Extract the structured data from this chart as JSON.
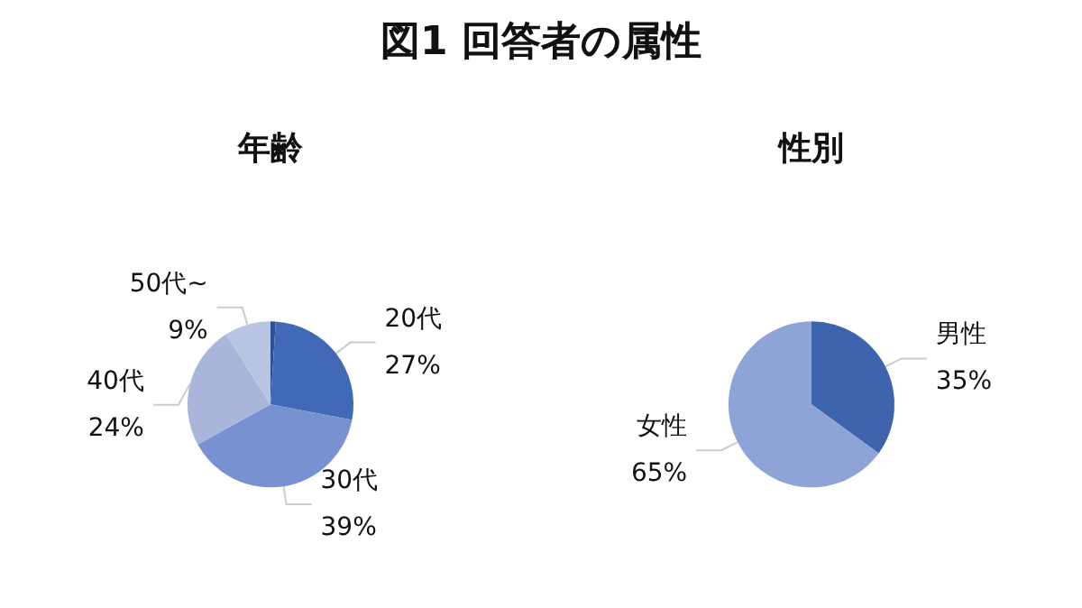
{
  "chart_data": [
    {
      "type": "pie",
      "title": "年齢",
      "annotations": [
        "図1 回答者の属性"
      ],
      "categories": [
        null,
        "20代",
        "30代",
        "40代",
        "50代~"
      ],
      "values": [
        1,
        27,
        39,
        24,
        9
      ],
      "colors": [
        "#2e4f94",
        "#4169b8",
        "#7891d0",
        "#a9b6dc",
        "#b9c4e3"
      ],
      "value_labels": [
        null,
        "27%",
        "39%",
        "24%",
        "9%"
      ],
      "legend": false
    },
    {
      "type": "pie",
      "title": "性別",
      "categories": [
        "男性",
        "女性"
      ],
      "values": [
        35,
        65
      ],
      "colors": [
        "#3d64ad",
        "#8ea4d6"
      ],
      "value_labels": [
        "35%",
        "65%"
      ],
      "legend": false
    }
  ]
}
